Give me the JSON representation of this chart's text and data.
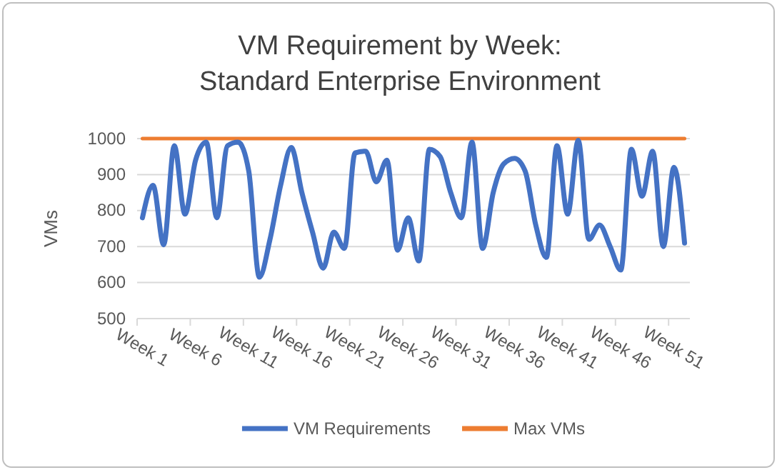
{
  "chart_data": {
    "type": "line",
    "title": "VM Requirement by Week: Standard Enterprise Environment",
    "ylabel": "VMs",
    "categories": [
      "Week 1",
      null,
      null,
      null,
      null,
      "Week 6",
      null,
      null,
      null,
      null,
      "Week 11",
      null,
      null,
      null,
      null,
      "Week 16",
      null,
      null,
      null,
      null,
      "Week 21",
      null,
      null,
      null,
      null,
      "Week 26",
      null,
      null,
      null,
      null,
      "Week 31",
      null,
      null,
      null,
      null,
      "Week 36",
      null,
      null,
      null,
      null,
      "Week 41",
      null,
      null,
      null,
      null,
      "Week 46",
      null,
      null,
      null,
      null,
      "Week 51",
      null
    ],
    "series": [
      {
        "name": "VM Requirements",
        "color": "#4472c4",
        "values": [
          780,
          870,
          705,
          980,
          790,
          940,
          990,
          780,
          980,
          990,
          910,
          615,
          720,
          870,
          975,
          850,
          740,
          640,
          740,
          695,
          960,
          965,
          880,
          940,
          690,
          780,
          660,
          970,
          950,
          850,
          780,
          990,
          695,
          850,
          930,
          945,
          910,
          760,
          670,
          980,
          790,
          995,
          720,
          760,
          700,
          635,
          970,
          840,
          965,
          700,
          920,
          710
        ]
      },
      {
        "name": "Max VMs",
        "color": "#ed7d31",
        "values": [
          1000,
          1000,
          1000,
          1000,
          1000,
          1000,
          1000,
          1000,
          1000,
          1000,
          1000,
          1000,
          1000,
          1000,
          1000,
          1000,
          1000,
          1000,
          1000,
          1000,
          1000,
          1000,
          1000,
          1000,
          1000,
          1000,
          1000,
          1000,
          1000,
          1000,
          1000,
          1000,
          1000,
          1000,
          1000,
          1000,
          1000,
          1000,
          1000,
          1000,
          1000,
          1000,
          1000,
          1000,
          1000,
          1000,
          1000,
          1000,
          1000,
          1000,
          1000,
          1000
        ]
      }
    ],
    "ylim": [
      500,
      1000
    ],
    "yticks": [
      500,
      600,
      700,
      800,
      900,
      1000
    ],
    "grid": "y",
    "legend": "bottom",
    "marker": "none",
    "line_style": "solid"
  }
}
